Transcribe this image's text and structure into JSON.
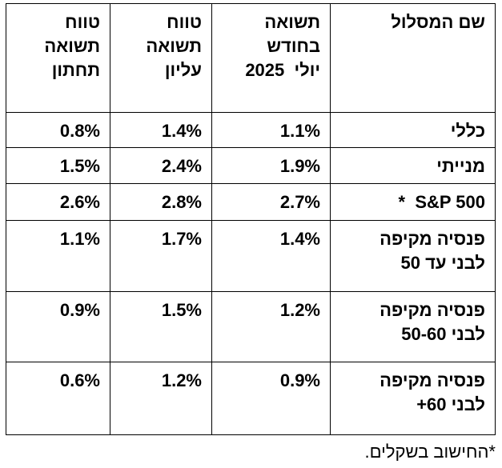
{
  "table": {
    "header": [
      [
        "שם המסלול"
      ],
      [
        "תשואה",
        "בחודש",
        "יולי  2025"
      ],
      [
        "טווח",
        "תשואה",
        "עליון"
      ],
      [
        "טווח",
        "תשואה",
        "תחתון"
      ]
    ],
    "rows": [
      [
        [
          "כללי"
        ],
        "1.1%",
        "1.4%",
        "0.8%"
      ],
      [
        [
          "מנייתי"
        ],
        "1.9%",
        "2.4%",
        "1.5%"
      ],
      [
        [
          "S&P 500  *"
        ],
        "2.7%",
        "2.8%",
        "2.6%"
      ],
      [
        [
          "פנסיה מקיפה",
          "לבני עד 50"
        ],
        "1.4%",
        "1.7%",
        "1.1%"
      ],
      [
        [
          "פנסיה מקיפה",
          "לבני 50-60"
        ],
        "1.2%",
        "1.5%",
        "0.9%"
      ],
      [
        [
          "פנסיה מקיפה",
          "לבני 60+"
        ],
        "0.9%",
        "1.2%",
        "0.6%"
      ]
    ]
  },
  "footnote": "*החישוב בשקלים."
}
